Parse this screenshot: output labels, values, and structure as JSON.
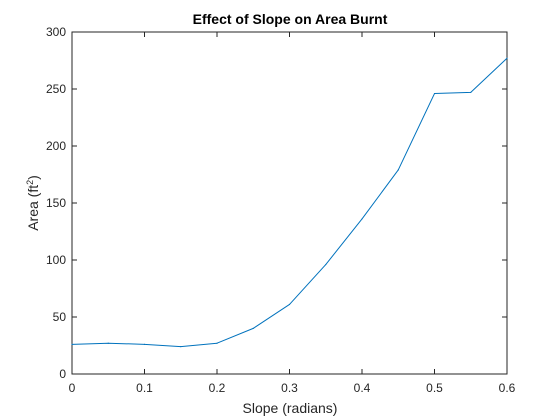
{
  "chart_data": {
    "type": "line",
    "title": "Effect of Slope on Area Burnt",
    "xlabel": "Slope (radians)",
    "ylabel_main": "Area (ft",
    "ylabel_sup": "2",
    "ylabel_end": ")",
    "xlim": [
      0,
      0.6
    ],
    "ylim": [
      0,
      300
    ],
    "xticks": [
      0,
      0.1,
      0.2,
      0.3,
      0.4,
      0.5,
      0.6
    ],
    "xtick_labels": [
      "0",
      "0.1",
      "0.2",
      "0.3",
      "0.4",
      "0.5",
      "0.6"
    ],
    "yticks": [
      0,
      50,
      100,
      150,
      200,
      250,
      300
    ],
    "ytick_labels": [
      "0",
      "50",
      "100",
      "150",
      "200",
      "250",
      "300"
    ],
    "grid": false,
    "series": [
      {
        "color": "#0072bd",
        "x": [
          0,
          0.05,
          0.1,
          0.15,
          0.2,
          0.25,
          0.3,
          0.35,
          0.4,
          0.45,
          0.5,
          0.55,
          0.6
        ],
        "y": [
          26,
          27,
          26,
          24,
          27,
          40,
          61,
          96,
          136,
          179,
          246,
          247,
          277
        ]
      }
    ]
  }
}
